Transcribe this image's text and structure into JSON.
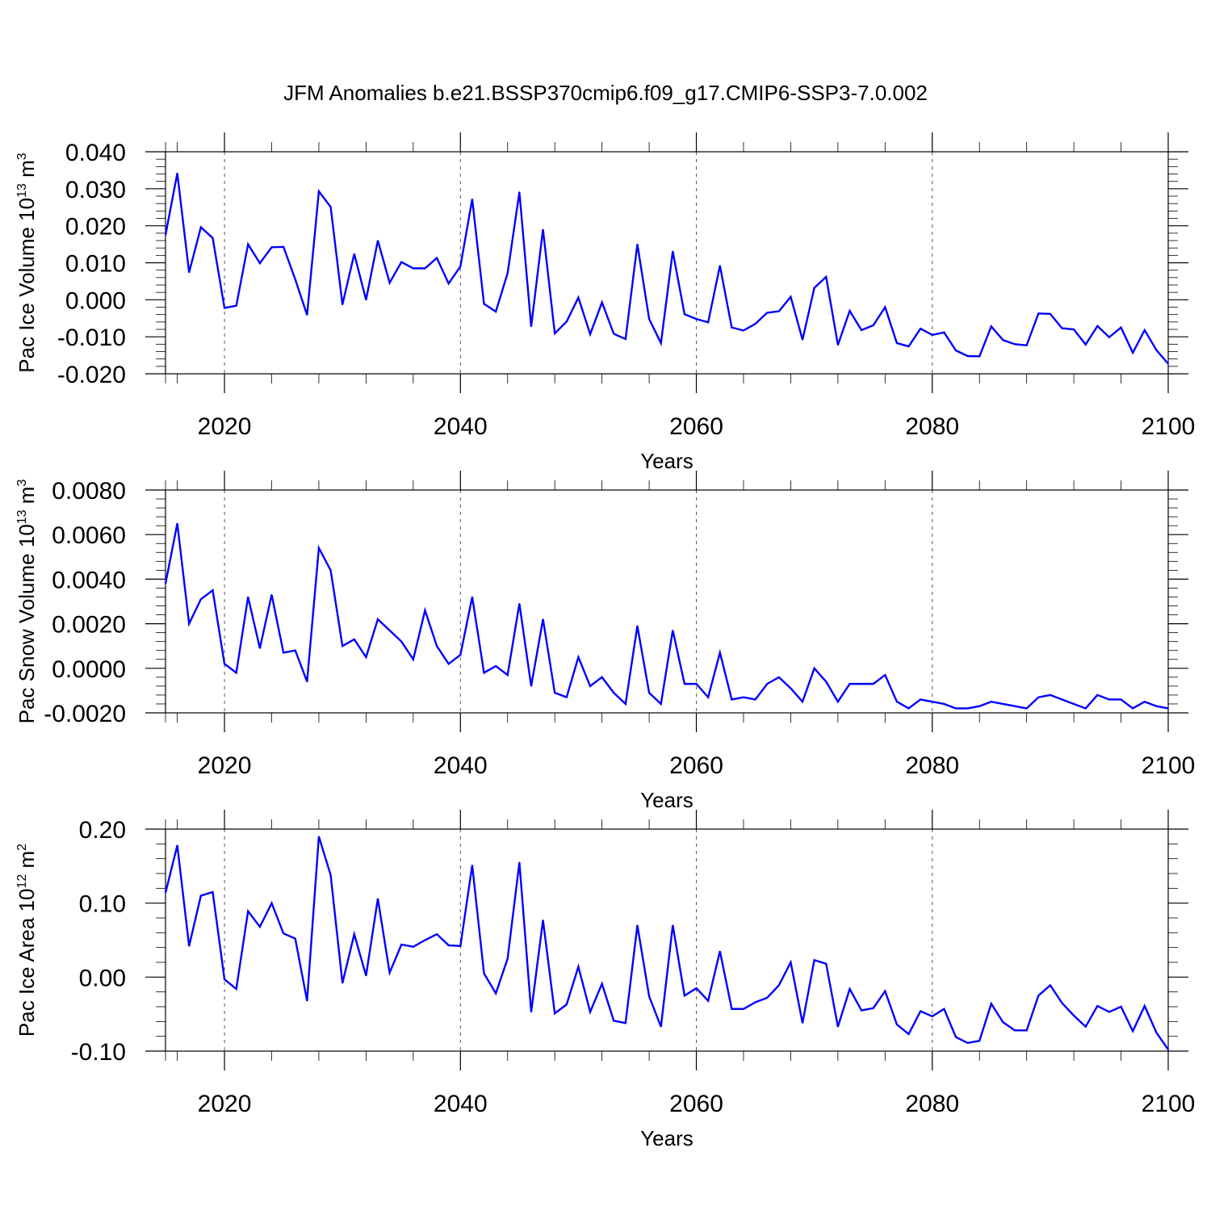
{
  "title": "JFM Anomalies b.e21.BSSP370cmip6.f09_g17.CMIP6-SSP3-7.0.002",
  "line_color": "#0000ff",
  "chart_data": [
    {
      "type": "line",
      "ylabel_parts": [
        "Pac Ice Volume 10",
        "13",
        " m",
        "3"
      ],
      "xlabel": "Years",
      "xlim": [
        2015,
        2100
      ],
      "xticks": [
        2020,
        2040,
        2060,
        2080,
        2100
      ],
      "xtick_labels": [
        "2020",
        "2040",
        "2060",
        "2080",
        "2100"
      ],
      "ylim": [
        -0.02,
        0.04
      ],
      "yticks": [
        -0.02,
        -0.01,
        0.0,
        0.01,
        0.02,
        0.03,
        0.04
      ],
      "ytick_labels": [
        "-0.020",
        "-0.010",
        "0.000",
        "0.010",
        "0.020",
        "0.030",
        "0.040"
      ],
      "x": [
        2015,
        2016,
        2017,
        2018,
        2019,
        2020,
        2021,
        2022,
        2023,
        2024,
        2025,
        2026,
        2027,
        2028,
        2029,
        2030,
        2031,
        2032,
        2033,
        2034,
        2035,
        2036,
        2037,
        2038,
        2039,
        2040,
        2041,
        2042,
        2043,
        2044,
        2045,
        2046,
        2047,
        2048,
        2049,
        2050,
        2051,
        2052,
        2053,
        2054,
        2055,
        2056,
        2057,
        2058,
        2059,
        2060,
        2061,
        2062,
        2063,
        2064,
        2065,
        2066,
        2067,
        2068,
        2069,
        2070,
        2071,
        2072,
        2073,
        2074,
        2075,
        2076,
        2077,
        2078,
        2079,
        2080,
        2081,
        2082,
        2083,
        2084,
        2085,
        2086,
        2087,
        2088,
        2089,
        2090,
        2091,
        2092,
        2093,
        2094,
        2095,
        2096,
        2097,
        2098,
        2099,
        2100
      ],
      "values": [
        0.0175,
        0.0342,
        0.0074,
        0.0196,
        0.0167,
        -0.0022,
        -0.0016,
        0.015,
        0.0099,
        0.0142,
        0.0143,
        0.0055,
        -0.0041,
        0.0293,
        0.0251,
        -0.0013,
        0.0124,
        0.0,
        0.016,
        0.0046,
        0.0102,
        0.0085,
        0.0085,
        0.0113,
        0.0044,
        0.009,
        0.0272,
        -0.0011,
        -0.0032,
        0.0072,
        0.0291,
        -0.0072,
        0.019,
        -0.0091,
        -0.0059,
        0.0006,
        -0.0093,
        -0.0007,
        -0.0092,
        -0.0106,
        0.015,
        -0.0052,
        -0.0117,
        0.0131,
        -0.0039,
        -0.0052,
        -0.0061,
        0.0092,
        -0.0075,
        -0.0083,
        -0.0065,
        -0.0035,
        -0.0031,
        0.0008,
        -0.0108,
        0.0032,
        0.0062,
        -0.0122,
        -0.003,
        -0.0082,
        -0.0069,
        -0.002,
        -0.0117,
        -0.0126,
        -0.0078,
        -0.0095,
        -0.0088,
        -0.0137,
        -0.0152,
        -0.0153,
        -0.0072,
        -0.0109,
        -0.012,
        -0.0123,
        -0.0037,
        -0.0038,
        -0.0077,
        -0.008,
        -0.0121,
        -0.0071,
        -0.0101,
        -0.0075,
        -0.0143,
        -0.0082,
        -0.0136,
        -0.0173
      ]
    },
    {
      "type": "line",
      "ylabel_parts": [
        "Pac Snow Volume 10",
        "13",
        " m",
        "3"
      ],
      "xlabel": "Years",
      "xlim": [
        2015,
        2100
      ],
      "xticks": [
        2020,
        2040,
        2060,
        2080,
        2100
      ],
      "xtick_labels": [
        "2020",
        "2040",
        "2060",
        "2080",
        "2100"
      ],
      "ylim": [
        -0.002,
        0.008
      ],
      "yticks": [
        -0.002,
        0.0,
        0.002,
        0.004,
        0.006,
        0.008
      ],
      "ytick_labels": [
        "-0.0020",
        "0.0000",
        "0.0020",
        "0.0040",
        "0.0060",
        "0.0080"
      ],
      "x": [
        2015,
        2016,
        2017,
        2018,
        2019,
        2020,
        2021,
        2022,
        2023,
        2024,
        2025,
        2026,
        2027,
        2028,
        2029,
        2030,
        2031,
        2032,
        2033,
        2034,
        2035,
        2036,
        2037,
        2038,
        2039,
        2040,
        2041,
        2042,
        2043,
        2044,
        2045,
        2046,
        2047,
        2048,
        2049,
        2050,
        2051,
        2052,
        2053,
        2054,
        2055,
        2056,
        2057,
        2058,
        2059,
        2060,
        2061,
        2062,
        2063,
        2064,
        2065,
        2066,
        2067,
        2068,
        2069,
        2070,
        2071,
        2072,
        2073,
        2074,
        2075,
        2076,
        2077,
        2078,
        2079,
        2080,
        2081,
        2082,
        2083,
        2084,
        2085,
        2086,
        2087,
        2088,
        2089,
        2090,
        2091,
        2092,
        2093,
        2094,
        2095,
        2096,
        2097,
        2098,
        2099,
        2100
      ],
      "values": [
        0.0038,
        0.0065,
        0.002,
        0.0031,
        0.0035,
        0.0002,
        -0.0002,
        0.0032,
        0.0009,
        0.0033,
        0.0007,
        0.0008,
        -0.0006,
        0.0054,
        0.0044,
        0.001,
        0.0013,
        0.0005,
        0.0022,
        0.0017,
        0.0012,
        0.0004,
        0.0026,
        0.001,
        0.0002,
        0.0006,
        0.0032,
        -0.0002,
        0.0001,
        -0.0003,
        0.0029,
        -0.0008,
        0.0022,
        -0.0011,
        -0.0013,
        0.0005,
        -0.0008,
        -0.0004,
        -0.0011,
        -0.0016,
        0.0019,
        -0.0011,
        -0.0016,
        0.0017,
        -0.0007,
        -0.0007,
        -0.0013,
        0.0007,
        -0.0014,
        -0.0013,
        -0.0014,
        -0.0007,
        -0.0004,
        -0.0009,
        -0.0015,
        0.0,
        -0.0006,
        -0.0015,
        -0.0007,
        -0.0007,
        -0.0007,
        -0.0003,
        -0.0015,
        -0.0018,
        -0.0014,
        -0.0015,
        -0.0016,
        -0.0018,
        -0.0018,
        -0.0017,
        -0.0015,
        -0.0016,
        -0.0017,
        -0.0018,
        -0.0013,
        -0.0012,
        -0.0014,
        -0.0016,
        -0.0018,
        -0.0012,
        -0.0014,
        -0.0014,
        -0.0018,
        -0.0015,
        -0.0017,
        -0.0018
      ]
    },
    {
      "type": "line",
      "ylabel_parts": [
        "Pac Ice Area 10",
        "12",
        " m",
        "2"
      ],
      "xlabel": "Years",
      "xlim": [
        2015,
        2100
      ],
      "xticks": [
        2020,
        2040,
        2060,
        2080,
        2100
      ],
      "xtick_labels": [
        "2020",
        "2040",
        "2060",
        "2080",
        "2100"
      ],
      "ylim": [
        -0.1,
        0.2
      ],
      "yticks": [
        -0.1,
        0.0,
        0.1,
        0.2
      ],
      "ytick_labels": [
        "-0.10",
        "0.00",
        "0.10",
        "0.20"
      ],
      "x": [
        2015,
        2016,
        2017,
        2018,
        2019,
        2020,
        2021,
        2022,
        2023,
        2024,
        2025,
        2026,
        2027,
        2028,
        2029,
        2030,
        2031,
        2032,
        2033,
        2034,
        2035,
        2036,
        2037,
        2038,
        2039,
        2040,
        2041,
        2042,
        2043,
        2044,
        2045,
        2046,
        2047,
        2048,
        2049,
        2050,
        2051,
        2052,
        2053,
        2054,
        2055,
        2056,
        2057,
        2058,
        2059,
        2060,
        2061,
        2062,
        2063,
        2064,
        2065,
        2066,
        2067,
        2068,
        2069,
        2070,
        2071,
        2072,
        2073,
        2074,
        2075,
        2076,
        2077,
        2078,
        2079,
        2080,
        2081,
        2082,
        2083,
        2084,
        2085,
        2086,
        2087,
        2088,
        2089,
        2090,
        2091,
        2092,
        2093,
        2094,
        2095,
        2096,
        2097,
        2098,
        2099,
        2100
      ],
      "values": [
        0.114,
        0.178,
        0.042,
        0.11,
        0.115,
        -0.003,
        -0.016,
        0.089,
        0.068,
        0.1,
        0.059,
        0.052,
        -0.032,
        0.19,
        0.138,
        -0.008,
        0.058,
        0.002,
        0.106,
        0.006,
        0.044,
        0.041,
        0.05,
        0.058,
        0.043,
        0.042,
        0.151,
        0.005,
        -0.022,
        0.025,
        0.155,
        -0.047,
        0.077,
        -0.049,
        -0.037,
        0.014,
        -0.047,
        -0.009,
        -0.059,
        -0.062,
        0.07,
        -0.026,
        -0.067,
        0.07,
        -0.025,
        -0.015,
        -0.032,
        0.035,
        -0.043,
        -0.043,
        -0.034,
        -0.028,
        -0.011,
        0.02,
        -0.062,
        0.023,
        0.018,
        -0.067,
        -0.016,
        -0.045,
        -0.042,
        -0.019,
        -0.064,
        -0.077,
        -0.046,
        -0.053,
        -0.043,
        -0.081,
        -0.089,
        -0.086,
        -0.036,
        -0.061,
        -0.072,
        -0.072,
        -0.025,
        -0.011,
        -0.035,
        -0.052,
        -0.067,
        -0.039,
        -0.047,
        -0.04,
        -0.073,
        -0.039,
        -0.075,
        -0.098
      ]
    }
  ]
}
